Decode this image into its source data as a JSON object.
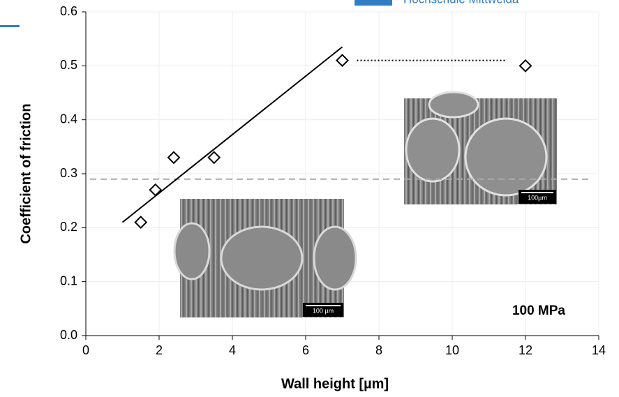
{
  "header": {
    "logo_text": "Hochschule Mittweida"
  },
  "chart_data": {
    "type": "scatter",
    "x_label": "Wall height [µm]",
    "y_label": "Coefficient of friction",
    "x": [
      1.5,
      1.9,
      2.4,
      3.5,
      7,
      12
    ],
    "values": [
      0.21,
      0.27,
      0.33,
      0.33,
      0.51,
      0.5
    ],
    "color": "#000000",
    "trend_line": {
      "x": [
        1,
        7
      ],
      "y": [
        0.21,
        0.535
      ]
    },
    "dotted_line": {
      "x": [
        7.4,
        11.5
      ],
      "y": [
        0.51,
        0.51
      ]
    },
    "reference_line": 0.29,
    "xlim": [
      0,
      14
    ],
    "xticks": [
      0,
      2,
      4,
      6,
      8,
      10,
      12,
      14
    ],
    "ylim": [
      0,
      0.6
    ],
    "yticks": [
      {
        "value": 0,
        "label": "0.0"
      },
      0.1,
      0.2,
      0.3,
      0.4,
      0.5,
      0.6
    ],
    "grid": true,
    "annotation": "100 MPa",
    "insets": [
      {
        "scale_bar": "100 µm"
      },
      {
        "scale_bar": "100µm"
      }
    ]
  }
}
